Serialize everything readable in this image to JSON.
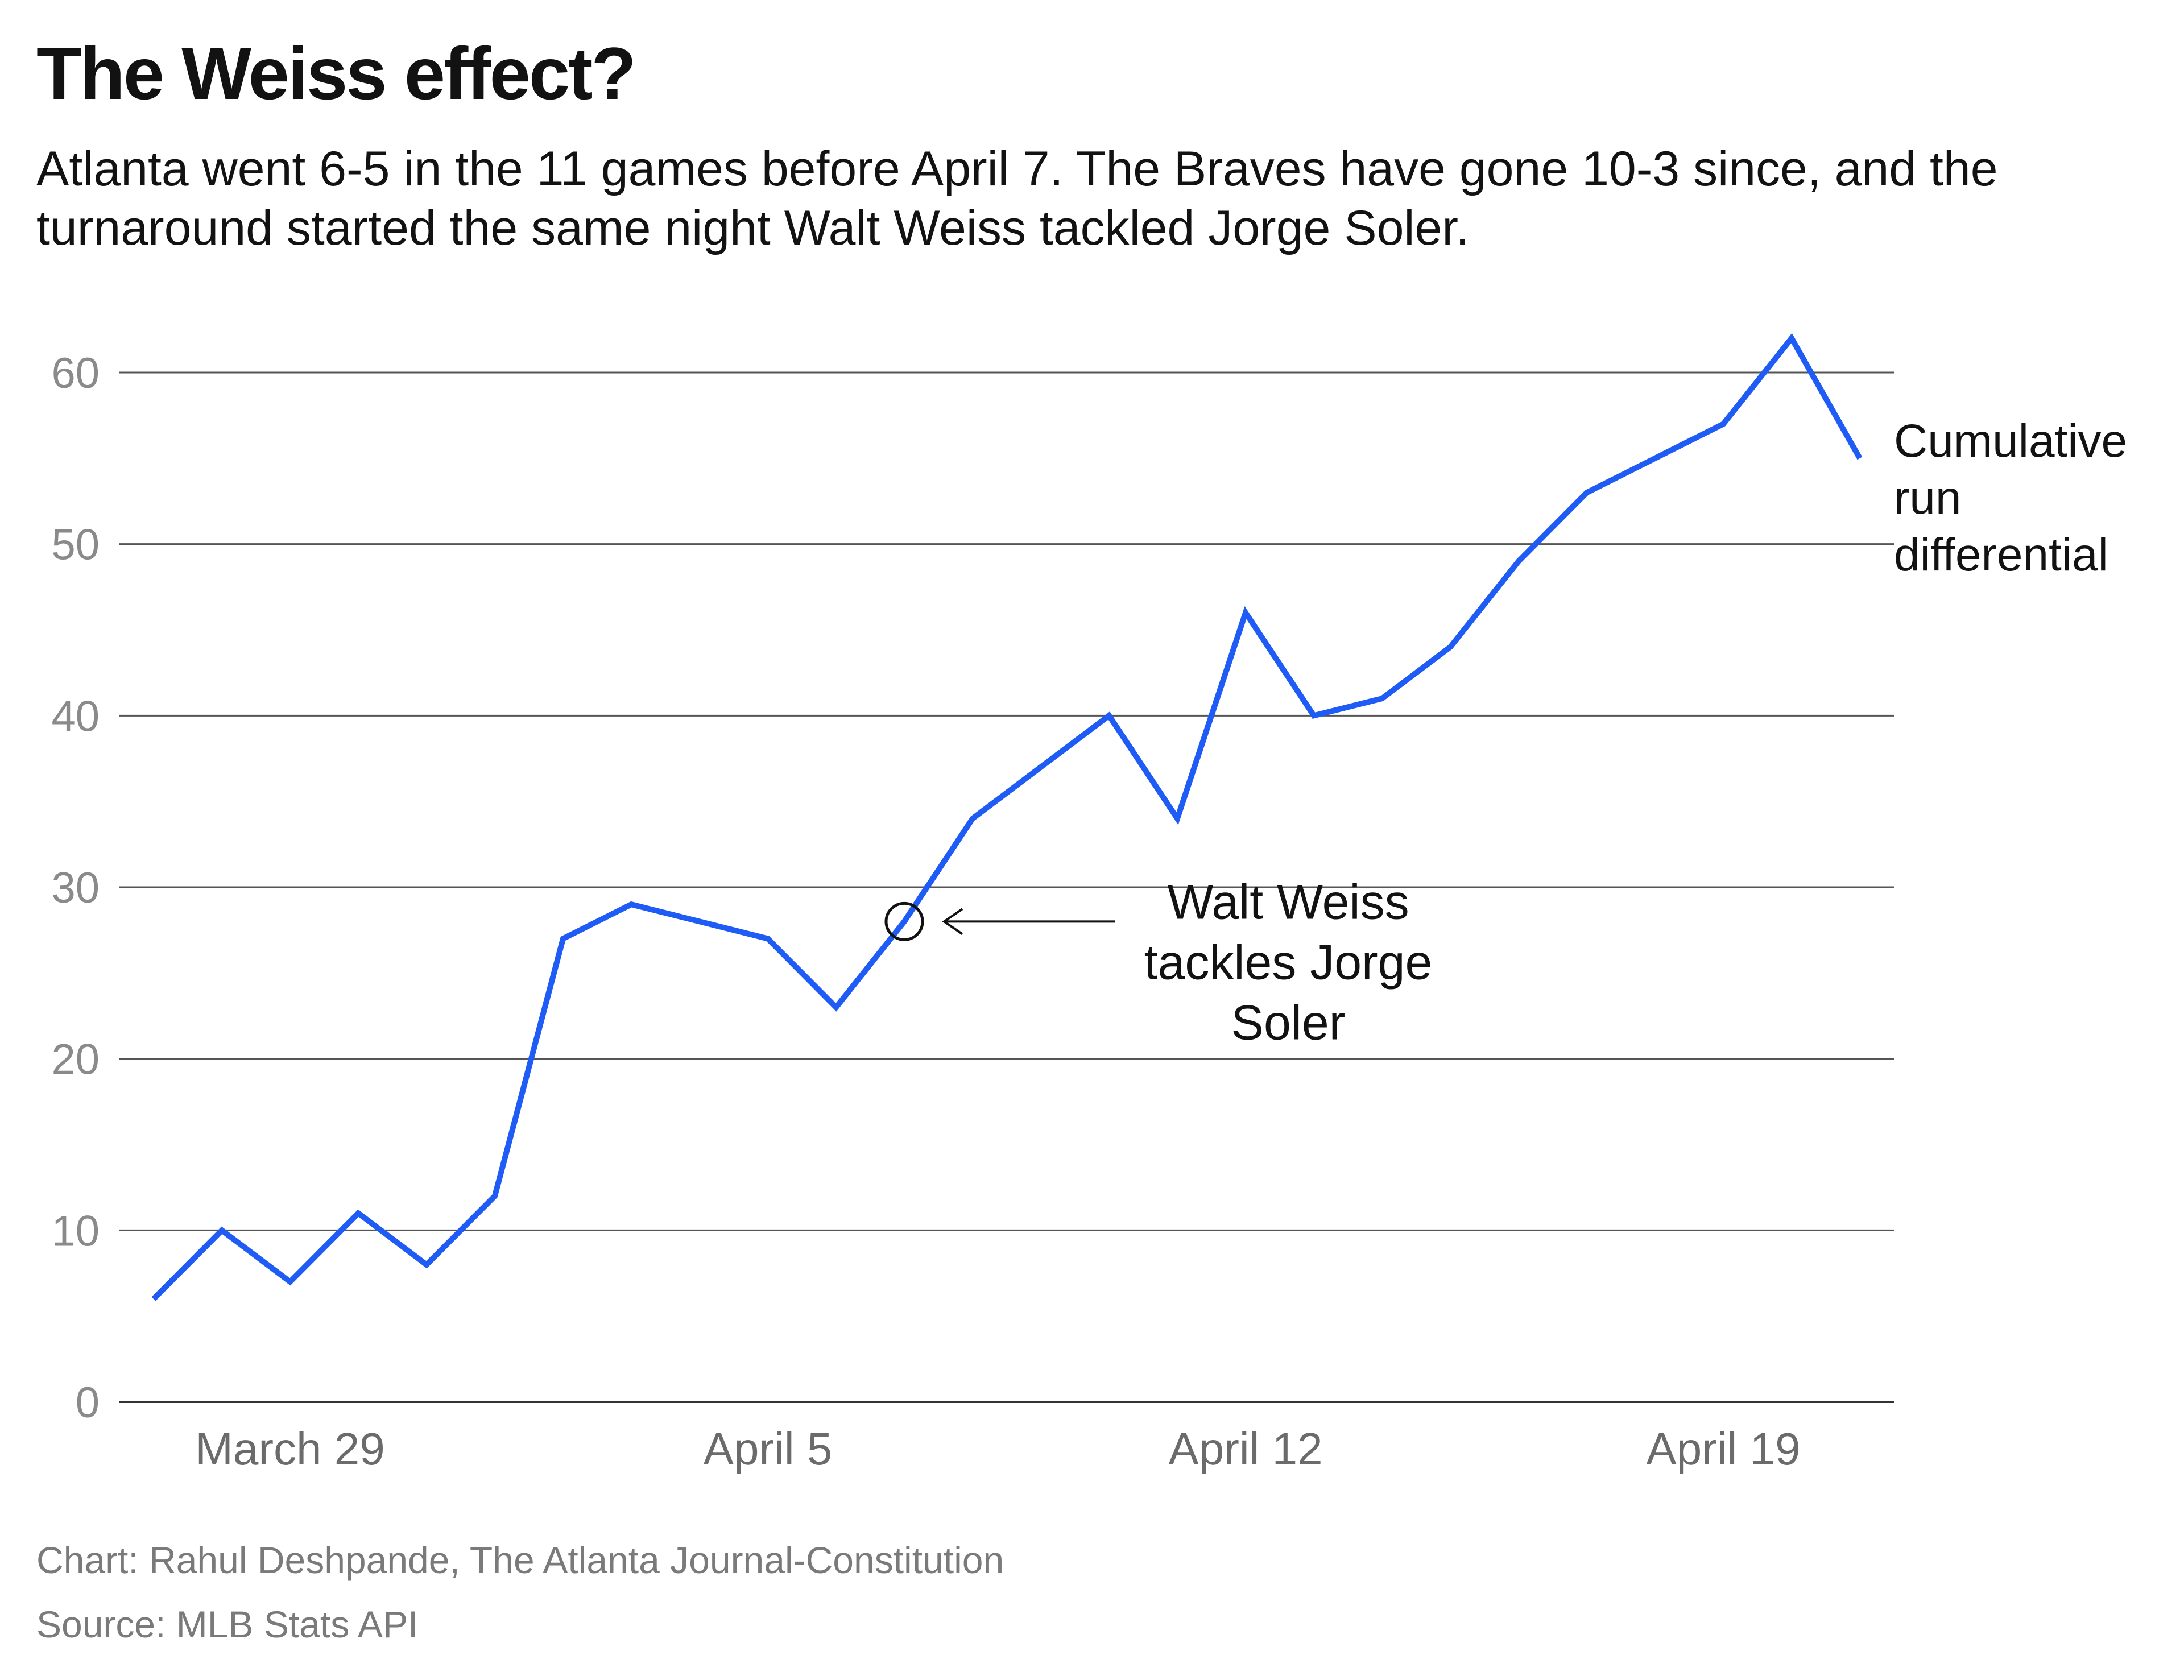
{
  "chart_data": {
    "type": "line",
    "title": "The Weiss effect?",
    "subtitle": "Atlanta went 6-5 in the 11 games before April 7. The Braves have gone 10-3 since, and the turnaround started the same night Walt Weiss tackled Jorge Soler.",
    "series": [
      {
        "name": "Cumulative run differential",
        "label_lines": [
          "Cumulative",
          "run",
          "differential"
        ],
        "color": "#1e5cf5",
        "x": [
          0,
          1,
          2,
          3,
          4,
          5,
          6,
          7,
          8,
          9,
          10,
          11,
          12,
          13,
          14,
          15,
          16,
          17,
          18,
          19,
          20,
          21,
          22,
          23,
          24,
          25
        ],
        "values": [
          6,
          10,
          7,
          11,
          8,
          12,
          27,
          29,
          28,
          27,
          23,
          28,
          34,
          37,
          40,
          34,
          46,
          40,
          41,
          44,
          49,
          53,
          55,
          57,
          62,
          55
        ]
      }
    ],
    "x_ticks": [
      {
        "x": 2,
        "label": "March 29"
      },
      {
        "x": 9,
        "label": "April 5"
      },
      {
        "x": 16,
        "label": "April 12"
      },
      {
        "x": 23,
        "label": "April 19"
      }
    ],
    "y_ticks": [
      0,
      10,
      20,
      30,
      40,
      50,
      60
    ],
    "xlim": [
      -0.5,
      25.5
    ],
    "ylim": [
      0,
      60
    ],
    "grid": true,
    "annotation": {
      "x": 11,
      "y": 28,
      "lines": [
        "Walt Weiss",
        "tackles Jorge",
        "Soler"
      ]
    }
  },
  "credits": {
    "chart": "Chart: Rahul Deshpande, The Atlanta Journal-Constitution",
    "source": "Source: MLB Stats API"
  }
}
